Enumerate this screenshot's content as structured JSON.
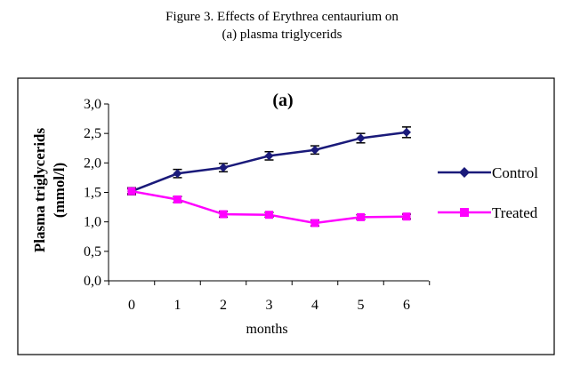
{
  "figure": {
    "caption_line1": "Figure 3. Effects of Erythrea centaurium on",
    "caption_line2": "(a) plasma triglycerids"
  },
  "colors": {
    "control": "#1a1a7a",
    "treated": "#ff00ff",
    "error_bar": "#000000",
    "frame": "#000000"
  },
  "chart_data": {
    "type": "line",
    "title": "(a)",
    "xlabel": "months",
    "ylabel": "Plasma triglycerids (mmol/l)",
    "ylabel_line1": "Plasma triglycerids",
    "ylabel_line2": "(mmol/l)",
    "x": [
      0,
      1,
      2,
      3,
      4,
      5,
      6
    ],
    "xtick_labels": [
      "0",
      "1",
      "2",
      "3",
      "4",
      "5",
      "6"
    ],
    "ylim": [
      0,
      3.0
    ],
    "yticks": [
      0,
      0.5,
      1.0,
      1.5,
      2.0,
      2.5,
      3.0
    ],
    "ytick_labels": [
      "0,0",
      "0,5",
      "1,0",
      "1,5",
      "2,0",
      "2,5",
      "3,0"
    ],
    "grid": false,
    "legend_position": "right",
    "series": [
      {
        "name": "Control",
        "marker": "diamond",
        "color": "#1a1a7a",
        "values": [
          1.52,
          1.82,
          1.92,
          2.12,
          2.22,
          2.42,
          2.52
        ],
        "errors": [
          0.06,
          0.07,
          0.07,
          0.07,
          0.07,
          0.08,
          0.09
        ]
      },
      {
        "name": "Treated",
        "marker": "square",
        "color": "#ff00ff",
        "values": [
          1.52,
          1.38,
          1.13,
          1.12,
          0.98,
          1.08,
          1.09
        ],
        "errors": [
          0.04,
          0.05,
          0.05,
          0.04,
          0.05,
          0.04,
          0.04
        ]
      }
    ]
  }
}
